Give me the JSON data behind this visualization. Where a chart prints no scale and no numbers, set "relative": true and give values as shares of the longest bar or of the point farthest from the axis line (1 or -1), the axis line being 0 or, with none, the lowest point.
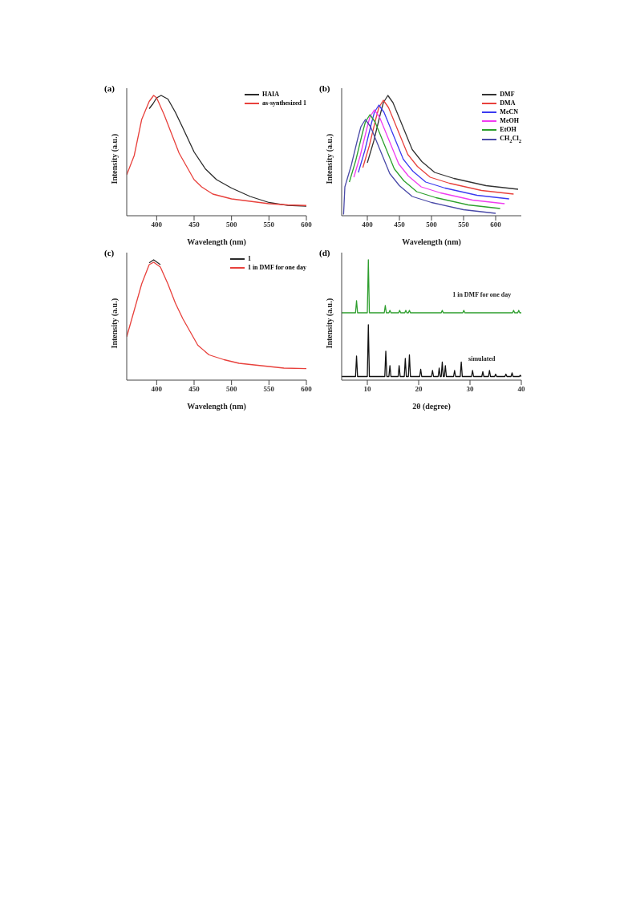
{
  "chart_data": [
    {
      "type": "line",
      "title": "(a)",
      "xlabel": "Wavelength (nm)",
      "ylabel": "Intensity (a.u.)",
      "relative": true,
      "xlim": [
        360,
        600
      ],
      "xticks": [
        400,
        450,
        500,
        550,
        600
      ],
      "legend": "top right",
      "series": [
        {
          "name": "HAIA",
          "color": "#2b2b2b",
          "x": [
            390,
            395,
            400,
            406,
            415,
            425,
            435,
            450,
            465,
            480,
            500,
            525,
            550,
            575,
            600
          ],
          "values": [
            0.89,
            0.93,
            0.98,
            1.0,
            0.97,
            0.86,
            0.73,
            0.53,
            0.39,
            0.3,
            0.23,
            0.16,
            0.11,
            0.086,
            0.08
          ]
        },
        {
          "name": "as-synthesized 1",
          "color": "#e8413c",
          "x": [
            360,
            370,
            380,
            390,
            396,
            400,
            410,
            420,
            430,
            440,
            450,
            460,
            475,
            500,
            525,
            550,
            575,
            600
          ],
          "values": [
            0.34,
            0.5,
            0.8,
            0.95,
            1.0,
            0.98,
            0.84,
            0.68,
            0.52,
            0.41,
            0.3,
            0.24,
            0.18,
            0.14,
            0.12,
            0.1,
            0.09,
            0.085
          ]
        }
      ]
    },
    {
      "type": "line",
      "title": "(b)",
      "xlabel": "Wavelength (nm)",
      "ylabel": "Intensity (a.u.)",
      "relative": true,
      "xlim": [
        360,
        640
      ],
      "xticks": [
        400,
        450,
        500,
        550,
        600
      ],
      "legend": "top right",
      "series": [
        {
          "name": "DMF",
          "color": "#333333",
          "x": [
            400,
            410,
            420,
            425,
            432,
            440,
            450,
            460,
            470,
            485,
            505,
            535,
            585,
            635
          ],
          "values": [
            0.44,
            0.62,
            0.84,
            0.94,
            1.0,
            0.94,
            0.81,
            0.68,
            0.55,
            0.45,
            0.36,
            0.31,
            0.25,
            0.22
          ]
        },
        {
          "name": "DMA",
          "color": "#e8413c",
          "x": [
            393,
            403,
            413,
            418,
            425,
            433,
            443,
            453,
            463,
            478,
            498,
            528,
            578,
            628
          ],
          "values": [
            0.4,
            0.58,
            0.8,
            0.9,
            0.96,
            0.9,
            0.77,
            0.64,
            0.51,
            0.41,
            0.32,
            0.27,
            0.21,
            0.18
          ]
        },
        {
          "name": "MeCN",
          "color": "#3b3bf0",
          "x": [
            386,
            396,
            406,
            411,
            418,
            426,
            436,
            446,
            456,
            471,
            491,
            521,
            571,
            621
          ],
          "values": [
            0.36,
            0.54,
            0.76,
            0.86,
            0.92,
            0.86,
            0.73,
            0.6,
            0.47,
            0.37,
            0.28,
            0.23,
            0.17,
            0.14
          ]
        },
        {
          "name": "MeOH",
          "color": "#f03cf0",
          "x": [
            379,
            389,
            399,
            404,
            411,
            419,
            429,
            439,
            449,
            464,
            484,
            514,
            564,
            614
          ],
          "values": [
            0.32,
            0.5,
            0.72,
            0.82,
            0.88,
            0.82,
            0.69,
            0.56,
            0.43,
            0.33,
            0.24,
            0.19,
            0.13,
            0.1
          ]
        },
        {
          "name": "EtOH",
          "color": "#2ca02c",
          "x": [
            372,
            382,
            392,
            397,
            404,
            412,
            422,
            432,
            442,
            457,
            477,
            507,
            557,
            607
          ],
          "values": [
            0.28,
            0.46,
            0.68,
            0.78,
            0.84,
            0.78,
            0.65,
            0.52,
            0.39,
            0.29,
            0.2,
            0.15,
            0.09,
            0.06
          ]
        },
        {
          "name": "CH$_{2}$Cl$_{2}$",
          "color": "#4a4aa8",
          "x": [
            363,
            365,
            375,
            385,
            390,
            397,
            405,
            415,
            425,
            435,
            450,
            470,
            500,
            550,
            600
          ],
          "values": [
            0.01,
            0.24,
            0.42,
            0.64,
            0.74,
            0.8,
            0.74,
            0.61,
            0.48,
            0.35,
            0.25,
            0.16,
            0.11,
            0.05,
            0.02
          ]
        }
      ]
    },
    {
      "type": "line",
      "title": "(c)",
      "xlabel": "Wavelength (nm)",
      "ylabel": "Intensity (a.u.)",
      "relative": true,
      "xlim": [
        360,
        600
      ],
      "xticks": [
        400,
        450,
        500,
        550,
        600
      ],
      "legend": "top right",
      "series": [
        {
          "name": "1",
          "color": "#2b2b2b",
          "x": [
            390,
            396,
            405
          ],
          "values": [
            0.975,
            1.0,
            0.96
          ]
        },
        {
          "name": "1 in DMF for one day",
          "color": "#e8413c",
          "x": [
            360,
            370,
            380,
            390,
            396,
            405,
            415,
            425,
            435,
            445,
            455,
            470,
            490,
            510,
            540,
            570,
            600
          ],
          "values": [
            0.36,
            0.58,
            0.8,
            0.96,
            0.98,
            0.94,
            0.8,
            0.64,
            0.51,
            0.4,
            0.29,
            0.21,
            0.17,
            0.14,
            0.12,
            0.1,
            0.096
          ]
        }
      ]
    },
    {
      "type": "line",
      "title": "(d)",
      "xlabel": "2θ (degree)",
      "ylabel": "Intensity (a.u.)",
      "relative": true,
      "xlim": [
        5,
        40
      ],
      "xticks": [
        10,
        20,
        30,
        40
      ],
      "series": [
        {
          "name": "simulated",
          "color": "#111111",
          "x": [
            5,
            7.7,
            7.9,
            8.1,
            10.0,
            10.2,
            10.4,
            13.4,
            13.6,
            13.8,
            14.2,
            14.4,
            14.6,
            16.0,
            16.2,
            16.4,
            17.2,
            17.4,
            17.6,
            18.0,
            18.2,
            18.4,
            20.2,
            20.4,
            20.6,
            22.5,
            22.7,
            22.9,
            23.8,
            24.0,
            24.2,
            24.4,
            24.6,
            24.8,
            25.0,
            25.2,
            25.4,
            26.8,
            27.0,
            27.2,
            28.1,
            28.3,
            28.5,
            30.3,
            30.5,
            30.7,
            32.3,
            32.5,
            32.7,
            33.6,
            33.8,
            34.0,
            34.8,
            35.0,
            35.2,
            36.8,
            37.0,
            37.2,
            38.0,
            38.2,
            38.4,
            39.6,
            39.8,
            40
          ],
          "values": [
            0.03,
            0.03,
            0.2,
            0.03,
            0.03,
            0.46,
            0.03,
            0.03,
            0.24,
            0.03,
            0.03,
            0.12,
            0.03,
            0.03,
            0.12,
            0.03,
            0.03,
            0.18,
            0.03,
            0.03,
            0.21,
            0.03,
            0.03,
            0.09,
            0.03,
            0.03,
            0.08,
            0.03,
            0.03,
            0.1,
            0.03,
            0.03,
            0.15,
            0.03,
            0.03,
            0.12,
            0.03,
            0.03,
            0.08,
            0.03,
            0.03,
            0.15,
            0.03,
            0.03,
            0.08,
            0.03,
            0.03,
            0.07,
            0.03,
            0.03,
            0.08,
            0.03,
            0.03,
            0.05,
            0.03,
            0.03,
            0.05,
            0.03,
            0.03,
            0.06,
            0.03,
            0.03,
            0.04,
            0.03
          ]
        },
        {
          "name": "1 in DMF for one day",
          "color": "#2e9e2e",
          "x": [
            5,
            7.7,
            7.9,
            8.1,
            10.0,
            10.2,
            10.4,
            13.3,
            13.5,
            13.7,
            14.2,
            14.4,
            14.6,
            16.1,
            16.3,
            16.5,
            17.3,
            17.5,
            17.7,
            18.0,
            18.2,
            18.4,
            24.4,
            24.6,
            24.8,
            28.6,
            28.8,
            29.0,
            38.3,
            38.5,
            38.7,
            39.3,
            39.5,
            39.7,
            40
          ],
          "values": [
            0.56,
            0.56,
            0.66,
            0.56,
            0.56,
            1.0,
            0.56,
            0.56,
            0.62,
            0.56,
            0.56,
            0.58,
            0.56,
            0.56,
            0.58,
            0.56,
            0.56,
            0.58,
            0.56,
            0.56,
            0.58,
            0.56,
            0.56,
            0.58,
            0.56,
            0.56,
            0.58,
            0.56,
            0.56,
            0.58,
            0.56,
            0.56,
            0.58,
            0.56,
            0.56
          ]
        }
      ]
    }
  ]
}
